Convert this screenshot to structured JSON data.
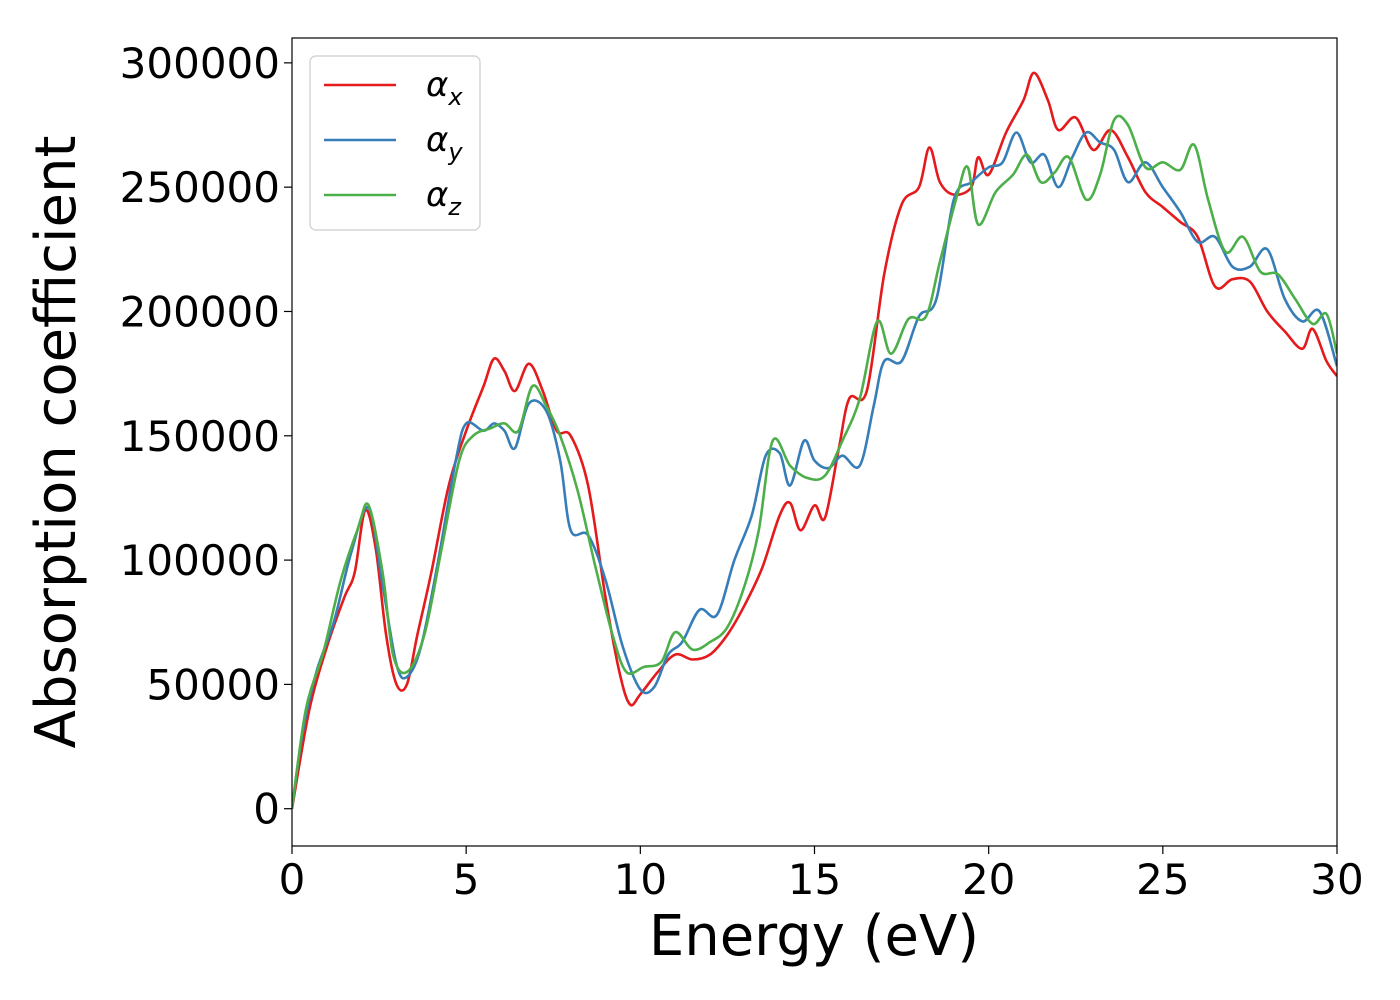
{
  "chart_data": {
    "type": "line",
    "title": "",
    "xlabel": "Energy (eV)",
    "ylabel": "Absorption coefficient",
    "xlim": [
      0,
      30
    ],
    "ylim": [
      -15000,
      310000
    ],
    "xticks": [
      0,
      5,
      10,
      15,
      20,
      25,
      30
    ],
    "yticks": [
      0,
      50000,
      100000,
      150000,
      200000,
      250000,
      300000
    ],
    "grid": false,
    "legend_position": "top-left",
    "series": [
      {
        "name": "α_x",
        "label_base": "α",
        "label_sub": "x",
        "color": "#e41a1c",
        "points": [
          [
            0.0,
            0
          ],
          [
            0.5,
            40000
          ],
          [
            1.0,
            65000
          ],
          [
            1.5,
            85000
          ],
          [
            1.8,
            95000
          ],
          [
            2.1,
            120000
          ],
          [
            2.4,
            105000
          ],
          [
            2.7,
            70000
          ],
          [
            3.0,
            50000
          ],
          [
            3.3,
            50000
          ],
          [
            3.6,
            70000
          ],
          [
            4.0,
            95000
          ],
          [
            4.5,
            130000
          ],
          [
            5.0,
            152000
          ],
          [
            5.5,
            170000
          ],
          [
            5.8,
            181000
          ],
          [
            6.1,
            176000
          ],
          [
            6.4,
            168000
          ],
          [
            6.8,
            179000
          ],
          [
            7.2,
            168000
          ],
          [
            7.6,
            152000
          ],
          [
            8.0,
            150000
          ],
          [
            8.5,
            130000
          ],
          [
            9.0,
            85000
          ],
          [
            9.4,
            55000
          ],
          [
            9.7,
            42000
          ],
          [
            10.0,
            46000
          ],
          [
            10.5,
            55000
          ],
          [
            11.0,
            62000
          ],
          [
            11.5,
            60000
          ],
          [
            12.0,
            62000
          ],
          [
            12.5,
            70000
          ],
          [
            13.0,
            82000
          ],
          [
            13.5,
            97000
          ],
          [
            14.0,
            118000
          ],
          [
            14.3,
            123000
          ],
          [
            14.6,
            112000
          ],
          [
            15.0,
            122000
          ],
          [
            15.3,
            117000
          ],
          [
            15.7,
            145000
          ],
          [
            16.0,
            165000
          ],
          [
            16.5,
            168000
          ],
          [
            17.0,
            215000
          ],
          [
            17.5,
            243000
          ],
          [
            18.0,
            250000
          ],
          [
            18.3,
            266000
          ],
          [
            18.6,
            252000
          ],
          [
            19.0,
            247000
          ],
          [
            19.5,
            250000
          ],
          [
            19.7,
            262000
          ],
          [
            20.0,
            255000
          ],
          [
            20.5,
            272000
          ],
          [
            21.0,
            285000
          ],
          [
            21.3,
            296000
          ],
          [
            21.7,
            285000
          ],
          [
            22.0,
            273000
          ],
          [
            22.5,
            278000
          ],
          [
            23.0,
            265000
          ],
          [
            23.5,
            273000
          ],
          [
            24.0,
            262000
          ],
          [
            24.5,
            248000
          ],
          [
            25.0,
            242000
          ],
          [
            25.5,
            236000
          ],
          [
            26.0,
            230000
          ],
          [
            26.5,
            210000
          ],
          [
            27.0,
            213000
          ],
          [
            27.5,
            212000
          ],
          [
            28.0,
            200000
          ],
          [
            28.5,
            192000
          ],
          [
            29.0,
            185000
          ],
          [
            29.3,
            193000
          ],
          [
            29.7,
            180000
          ],
          [
            30.0,
            174000
          ]
        ]
      },
      {
        "name": "α_y",
        "label_base": "α",
        "label_sub": "y",
        "color": "#377eb8",
        "points": [
          [
            0.0,
            0
          ],
          [
            0.3,
            30000
          ],
          [
            0.7,
            55000
          ],
          [
            1.2,
            75000
          ],
          [
            1.7,
            103000
          ],
          [
            2.2,
            121000
          ],
          [
            2.6,
            90000
          ],
          [
            3.0,
            58000
          ],
          [
            3.3,
            53000
          ],
          [
            3.7,
            65000
          ],
          [
            4.2,
            100000
          ],
          [
            4.7,
            140000
          ],
          [
            5.0,
            155000
          ],
          [
            5.5,
            152000
          ],
          [
            5.8,
            155000
          ],
          [
            6.1,
            152000
          ],
          [
            6.4,
            145000
          ],
          [
            6.8,
            163000
          ],
          [
            7.3,
            160000
          ],
          [
            7.7,
            140000
          ],
          [
            8.0,
            112000
          ],
          [
            8.5,
            110000
          ],
          [
            9.0,
            92000
          ],
          [
            9.5,
            65000
          ],
          [
            10.0,
            48000
          ],
          [
            10.4,
            49000
          ],
          [
            10.8,
            62000
          ],
          [
            11.2,
            67000
          ],
          [
            11.7,
            80000
          ],
          [
            12.2,
            78000
          ],
          [
            12.7,
            100000
          ],
          [
            13.2,
            118000
          ],
          [
            13.6,
            142000
          ],
          [
            14.0,
            143000
          ],
          [
            14.3,
            130000
          ],
          [
            14.7,
            148000
          ],
          [
            15.0,
            140000
          ],
          [
            15.4,
            137000
          ],
          [
            15.8,
            142000
          ],
          [
            16.3,
            138000
          ],
          [
            16.7,
            162000
          ],
          [
            17.0,
            180000
          ],
          [
            17.5,
            180000
          ],
          [
            18.0,
            198000
          ],
          [
            18.5,
            205000
          ],
          [
            19.0,
            245000
          ],
          [
            19.5,
            252000
          ],
          [
            20.0,
            258000
          ],
          [
            20.4,
            260000
          ],
          [
            20.8,
            272000
          ],
          [
            21.2,
            260000
          ],
          [
            21.6,
            263000
          ],
          [
            22.0,
            250000
          ],
          [
            22.4,
            262000
          ],
          [
            22.8,
            272000
          ],
          [
            23.2,
            268000
          ],
          [
            23.6,
            265000
          ],
          [
            24.0,
            252000
          ],
          [
            24.5,
            260000
          ],
          [
            25.0,
            250000
          ],
          [
            25.5,
            240000
          ],
          [
            26.0,
            228000
          ],
          [
            26.5,
            230000
          ],
          [
            27.0,
            218000
          ],
          [
            27.5,
            218000
          ],
          [
            28.0,
            225000
          ],
          [
            28.5,
            205000
          ],
          [
            29.0,
            196000
          ],
          [
            29.5,
            200000
          ],
          [
            30.0,
            178000
          ]
        ]
      },
      {
        "name": "α_z",
        "label_base": "α",
        "label_sub": "z",
        "color": "#4daf4a",
        "points": [
          [
            0.0,
            0
          ],
          [
            0.4,
            40000
          ],
          [
            0.9,
            63000
          ],
          [
            1.4,
            92000
          ],
          [
            1.9,
            113000
          ],
          [
            2.2,
            122000
          ],
          [
            2.6,
            95000
          ],
          [
            2.9,
            62000
          ],
          [
            3.3,
            55000
          ],
          [
            3.8,
            70000
          ],
          [
            4.3,
            105000
          ],
          [
            4.8,
            140000
          ],
          [
            5.2,
            150000
          ],
          [
            5.7,
            153000
          ],
          [
            6.1,
            155000
          ],
          [
            6.5,
            152000
          ],
          [
            6.9,
            170000
          ],
          [
            7.3,
            162000
          ],
          [
            7.7,
            150000
          ],
          [
            8.2,
            128000
          ],
          [
            8.7,
            98000
          ],
          [
            9.2,
            70000
          ],
          [
            9.6,
            55000
          ],
          [
            10.1,
            57000
          ],
          [
            10.6,
            59000
          ],
          [
            11.0,
            71000
          ],
          [
            11.5,
            64000
          ],
          [
            12.0,
            67000
          ],
          [
            12.5,
            73000
          ],
          [
            13.0,
            90000
          ],
          [
            13.4,
            112000
          ],
          [
            13.8,
            148000
          ],
          [
            14.3,
            138000
          ],
          [
            14.8,
            133000
          ],
          [
            15.3,
            134000
          ],
          [
            15.8,
            148000
          ],
          [
            16.3,
            165000
          ],
          [
            16.8,
            196000
          ],
          [
            17.2,
            183000
          ],
          [
            17.7,
            197000
          ],
          [
            18.2,
            198000
          ],
          [
            18.6,
            220000
          ],
          [
            19.1,
            247000
          ],
          [
            19.4,
            258000
          ],
          [
            19.7,
            235000
          ],
          [
            20.2,
            248000
          ],
          [
            20.7,
            255000
          ],
          [
            21.1,
            263000
          ],
          [
            21.5,
            252000
          ],
          [
            21.9,
            256000
          ],
          [
            22.3,
            262000
          ],
          [
            22.8,
            245000
          ],
          [
            23.2,
            255000
          ],
          [
            23.6,
            277000
          ],
          [
            24.0,
            275000
          ],
          [
            24.5,
            258000
          ],
          [
            25.0,
            260000
          ],
          [
            25.5,
            257000
          ],
          [
            25.9,
            267000
          ],
          [
            26.3,
            245000
          ],
          [
            26.8,
            224000
          ],
          [
            27.3,
            230000
          ],
          [
            27.8,
            216000
          ],
          [
            28.3,
            215000
          ],
          [
            28.8,
            205000
          ],
          [
            29.3,
            195000
          ],
          [
            29.7,
            199000
          ],
          [
            30.0,
            183000
          ]
        ]
      }
    ]
  }
}
